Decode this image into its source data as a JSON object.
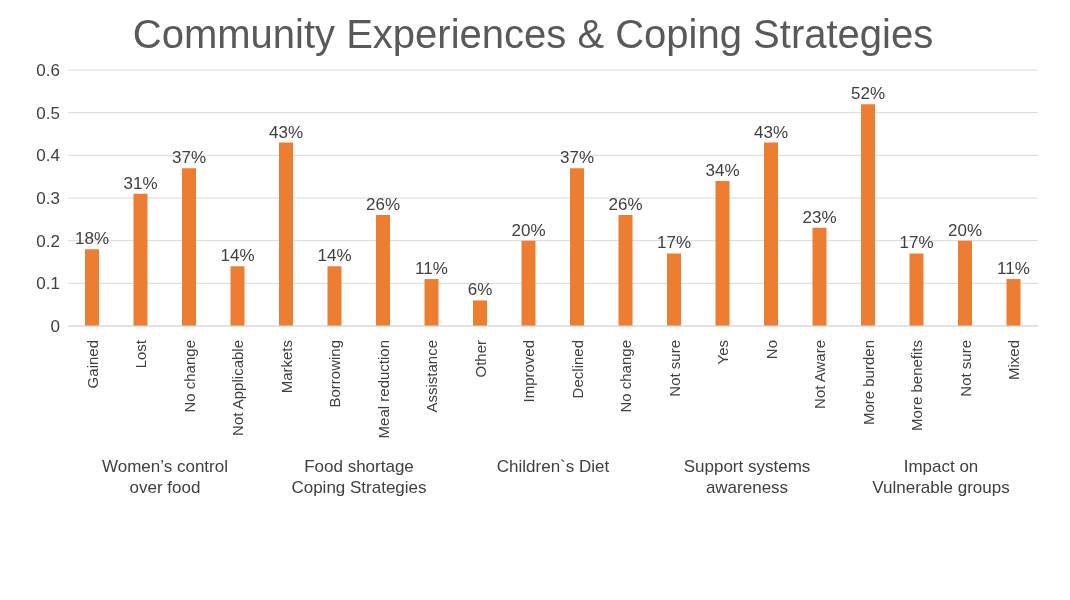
{
  "chart_data": {
    "type": "bar",
    "title": "Community Experiences & Coping Strategies",
    "categories": [
      "Gained",
      "Lost",
      "No change",
      "Not Applicable",
      "Markets",
      "Borrowing",
      "Meal reduction",
      "Assistance",
      "Other",
      "Improved",
      "Declined",
      "No change",
      "Not sure",
      "Yes",
      "No",
      "Not Aware",
      "More burden",
      "More benefits",
      "Not sure",
      "Mixed"
    ],
    "values": [
      0.18,
      0.31,
      0.37,
      0.14,
      0.43,
      0.14,
      0.26,
      0.11,
      0.06,
      0.2,
      0.37,
      0.26,
      0.17,
      0.34,
      0.43,
      0.23,
      0.52,
      0.17,
      0.2,
      0.11
    ],
    "value_labels": [
      "18%",
      "31%",
      "37%",
      "14%",
      "43%",
      "14%",
      "26%",
      "11%",
      "6%",
      "20%",
      "37%",
      "26%",
      "17%",
      "34%",
      "43%",
      "23%",
      "52%",
      "17%",
      "20%",
      "11%"
    ],
    "color": "#ed7d31",
    "ylim": [
      0,
      0.6
    ],
    "yticks": [
      0,
      0.1,
      0.2,
      0.3,
      0.4,
      0.5,
      0.6
    ],
    "grid": "y",
    "legend": false,
    "annotations": [
      "Women’s control over food",
      "Food shortage Coping Strategies",
      "Children`s Diet",
      "Support systems awareness",
      "Impact on Vulnerable groups"
    ]
  }
}
